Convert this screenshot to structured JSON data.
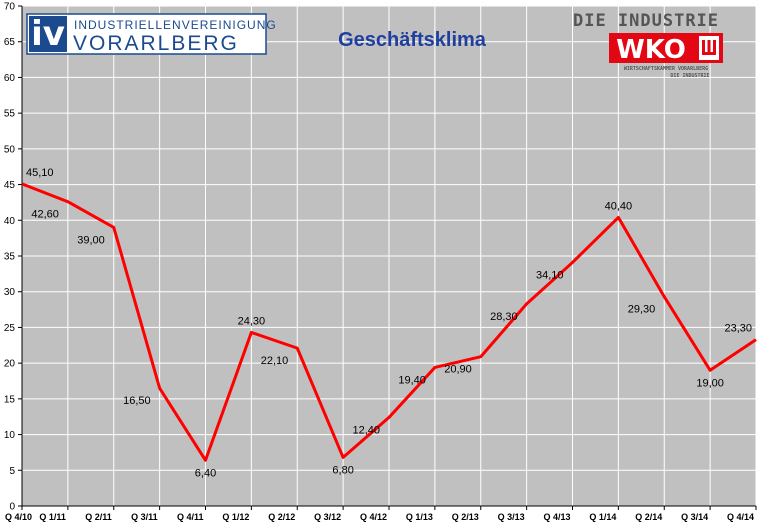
{
  "chart_data": {
    "type": "line",
    "title": "Geschäftsklima",
    "categories": [
      "Q 4/10",
      "Q 1/11",
      "Q 2/11",
      "Q 3/11",
      "Q 4/11",
      "Q 1/12",
      "Q 2/12",
      "Q 3/12",
      "Q 4/12",
      "Q 1/13",
      "Q 2/13",
      "Q 3/13",
      "Q 4/13",
      "Q 1/14",
      "Q 2/14",
      "Q 3/14",
      "Q 4/14"
    ],
    "values": [
      45.1,
      42.6,
      39.0,
      16.5,
      6.4,
      24.3,
      22.1,
      6.8,
      12.4,
      19.4,
      20.9,
      28.3,
      34.1,
      40.4,
      29.3,
      19.0,
      23.3
    ],
    "data_labels": [
      "45,10",
      "42,60",
      "39,00",
      "16,50",
      "6,40",
      "24,30",
      "22,10",
      "6,80",
      "12,40",
      "19,40",
      "20,90",
      "28,30",
      "34,10",
      "40,40",
      "29,30",
      "19,00",
      "23,30"
    ],
    "ylim": [
      0,
      70
    ],
    "yticks": [
      0,
      5,
      10,
      15,
      20,
      25,
      30,
      35,
      40,
      45,
      50,
      55,
      60,
      65,
      70
    ],
    "grid": true,
    "colors": {
      "line": "#ff0000",
      "plot_bg": "#c0c0c0",
      "grid": "#ffffff",
      "title": "#1f3fa0"
    }
  },
  "logos": {
    "iv": {
      "mark": "iv",
      "line1": "INDUSTRIELLENVEREINIGUNG",
      "line2": "VORARLBERG",
      "color": "#1b4a8f"
    },
    "wko": {
      "header": "DIE INDUSTRIE",
      "mark": "WKO",
      "sub1": "WIRTSCHAFTSKAMMER VORARLBERG",
      "sub2": "DIE INDUSTRIE",
      "color": "#e30613"
    }
  }
}
